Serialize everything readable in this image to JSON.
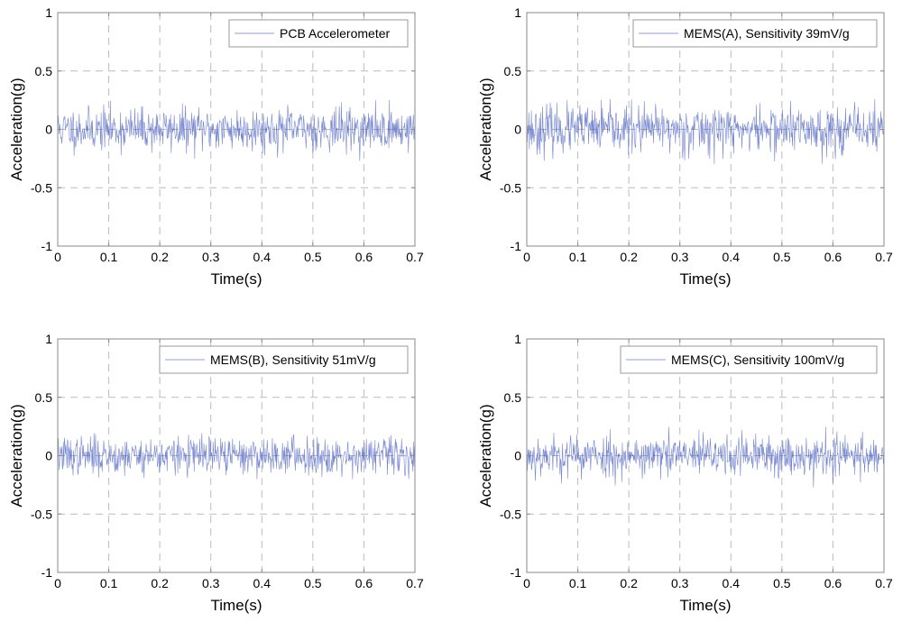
{
  "colors": {
    "signal": "#4a5fbf",
    "grid": "#bbbbbb",
    "axis": "#888888",
    "legend_border": "#999999"
  },
  "chart_data": [
    {
      "type": "line",
      "xlabel": "Time(s)",
      "ylabel": "Acceleration(g)",
      "xlim": [
        0,
        0.7
      ],
      "ylim": [
        -1,
        1
      ],
      "xticks": [
        0,
        0.1,
        0.2,
        0.3,
        0.4,
        0.5,
        0.6,
        0.7
      ],
      "yticks": [
        -1,
        -0.5,
        0,
        0.5,
        1
      ],
      "xtick_labels": [
        "0",
        "0.1",
        "0.2",
        "0.3",
        "0.4",
        "0.5",
        "0.6",
        "0.7"
      ],
      "ytick_labels": [
        "-1",
        "-0.5",
        "0",
        "0.5",
        "1"
      ],
      "grid": true,
      "legend": "PCB Accelerometer",
      "legend_position": "top-right",
      "series": [
        {
          "name": "PCB Accelerometer",
          "seed": 11,
          "sample_count": 700,
          "amplitude_std": 0.09,
          "peak_max": 0.25,
          "peak_min": -0.3
        }
      ]
    },
    {
      "type": "line",
      "xlabel": "Time(s)",
      "ylabel": "Acceleration(g)",
      "xlim": [
        0,
        0.7
      ],
      "ylim": [
        -1,
        1
      ],
      "xticks": [
        0,
        0.1,
        0.2,
        0.3,
        0.4,
        0.5,
        0.6,
        0.7
      ],
      "yticks": [
        -1,
        -0.5,
        0,
        0.5,
        1
      ],
      "xtick_labels": [
        "0",
        "0.1",
        "0.2",
        "0.3",
        "0.4",
        "0.5",
        "0.6",
        "0.7"
      ],
      "ytick_labels": [
        "-1",
        "-0.5",
        "0",
        "0.5",
        "1"
      ],
      "grid": true,
      "legend": "MEMS(A), Sensitivity 39mV/g",
      "legend_position": "top-right",
      "series": [
        {
          "name": "MEMS(A), Sensitivity 39mV/g",
          "seed": 23,
          "sample_count": 700,
          "amplitude_std": 0.1,
          "peak_max": 0.26,
          "peak_min": -0.32
        }
      ]
    },
    {
      "type": "line",
      "xlabel": "Time(s)",
      "ylabel": "Acceleration(g)",
      "xlim": [
        0,
        0.7
      ],
      "ylim": [
        -1,
        1
      ],
      "xticks": [
        0,
        0.1,
        0.2,
        0.3,
        0.4,
        0.5,
        0.6,
        0.7
      ],
      "yticks": [
        -1,
        -0.5,
        0,
        0.5,
        1
      ],
      "xtick_labels": [
        "0",
        "0.1",
        "0.2",
        "0.3",
        "0.4",
        "0.5",
        "0.6",
        "0.7"
      ],
      "ytick_labels": [
        "-1",
        "-0.5",
        "0",
        "0.5",
        "1"
      ],
      "grid": true,
      "legend": "MEMS(B), Sensitivity 51mV/g",
      "legend_position": "top-right",
      "series": [
        {
          "name": "MEMS(B), Sensitivity 51mV/g",
          "seed": 37,
          "sample_count": 700,
          "amplitude_std": 0.08,
          "peak_max": 0.28,
          "peak_min": -0.2
        }
      ]
    },
    {
      "type": "line",
      "xlabel": "Time(s)",
      "ylabel": "Acceleration(g)",
      "xlim": [
        0,
        0.7
      ],
      "ylim": [
        -1,
        1
      ],
      "xticks": [
        0,
        0.1,
        0.2,
        0.3,
        0.4,
        0.5,
        0.6,
        0.7
      ],
      "yticks": [
        -1,
        -0.5,
        0,
        0.5,
        1
      ],
      "xtick_labels": [
        "0",
        "0.1",
        "0.2",
        "0.3",
        "0.4",
        "0.5",
        "0.6",
        "0.7"
      ],
      "ytick_labels": [
        "-1",
        "-0.5",
        "0",
        "0.5",
        "1"
      ],
      "grid": true,
      "legend": "MEMS(C), Sensitivity 100mV/g",
      "legend_position": "top-right",
      "series": [
        {
          "name": "MEMS(C), Sensitivity 100mV/g",
          "seed": 53,
          "sample_count": 700,
          "amplitude_std": 0.09,
          "peak_max": 0.27,
          "peak_min": -0.32
        }
      ]
    }
  ]
}
